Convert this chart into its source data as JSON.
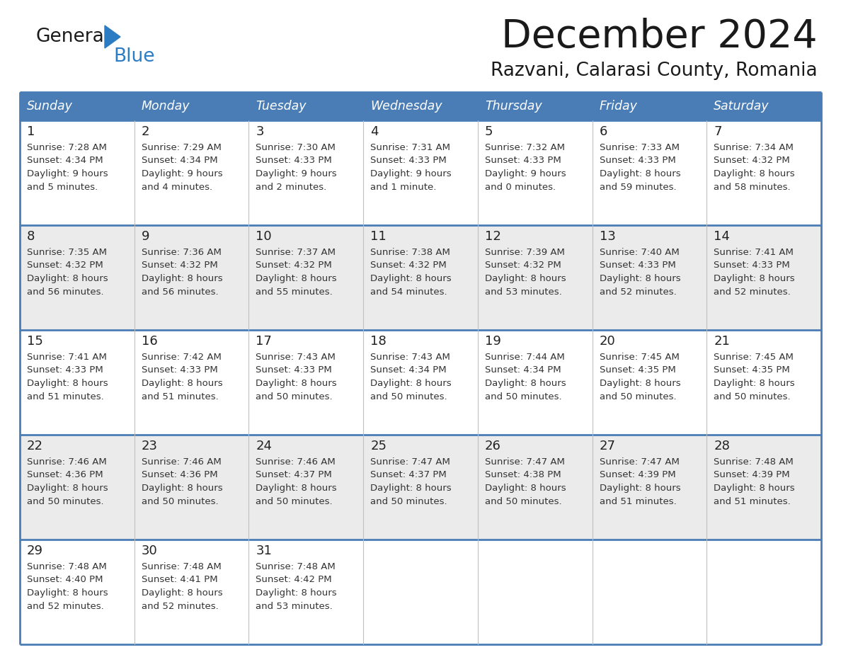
{
  "title": "December 2024",
  "subtitle": "Razvani, Calarasi County, Romania",
  "header_color": "#4a7db5",
  "header_text_color": "#ffffff",
  "cell_bg_white": "#ffffff",
  "cell_bg_gray": "#ebebeb",
  "border_color": "#3a6a9e",
  "separator_color": "#4a7db5",
  "day_names": [
    "Sunday",
    "Monday",
    "Tuesday",
    "Wednesday",
    "Thursday",
    "Friday",
    "Saturday"
  ],
  "weeks": [
    [
      {
        "day": "1",
        "sunrise": "7:28 AM",
        "sunset": "4:34 PM",
        "daylight": "9 hours",
        "daylight2": "and 5 minutes."
      },
      {
        "day": "2",
        "sunrise": "7:29 AM",
        "sunset": "4:34 PM",
        "daylight": "9 hours",
        "daylight2": "and 4 minutes."
      },
      {
        "day": "3",
        "sunrise": "7:30 AM",
        "sunset": "4:33 PM",
        "daylight": "9 hours",
        "daylight2": "and 2 minutes."
      },
      {
        "day": "4",
        "sunrise": "7:31 AM",
        "sunset": "4:33 PM",
        "daylight": "9 hours",
        "daylight2": "and 1 minute."
      },
      {
        "day": "5",
        "sunrise": "7:32 AM",
        "sunset": "4:33 PM",
        "daylight": "9 hours",
        "daylight2": "and 0 minutes."
      },
      {
        "day": "6",
        "sunrise": "7:33 AM",
        "sunset": "4:33 PM",
        "daylight": "8 hours",
        "daylight2": "and 59 minutes."
      },
      {
        "day": "7",
        "sunrise": "7:34 AM",
        "sunset": "4:32 PM",
        "daylight": "8 hours",
        "daylight2": "and 58 minutes."
      }
    ],
    [
      {
        "day": "8",
        "sunrise": "7:35 AM",
        "sunset": "4:32 PM",
        "daylight": "8 hours",
        "daylight2": "and 56 minutes."
      },
      {
        "day": "9",
        "sunrise": "7:36 AM",
        "sunset": "4:32 PM",
        "daylight": "8 hours",
        "daylight2": "and 56 minutes."
      },
      {
        "day": "10",
        "sunrise": "7:37 AM",
        "sunset": "4:32 PM",
        "daylight": "8 hours",
        "daylight2": "and 55 minutes."
      },
      {
        "day": "11",
        "sunrise": "7:38 AM",
        "sunset": "4:32 PM",
        "daylight": "8 hours",
        "daylight2": "and 54 minutes."
      },
      {
        "day": "12",
        "sunrise": "7:39 AM",
        "sunset": "4:32 PM",
        "daylight": "8 hours",
        "daylight2": "and 53 minutes."
      },
      {
        "day": "13",
        "sunrise": "7:40 AM",
        "sunset": "4:33 PM",
        "daylight": "8 hours",
        "daylight2": "and 52 minutes."
      },
      {
        "day": "14",
        "sunrise": "7:41 AM",
        "sunset": "4:33 PM",
        "daylight": "8 hours",
        "daylight2": "and 52 minutes."
      }
    ],
    [
      {
        "day": "15",
        "sunrise": "7:41 AM",
        "sunset": "4:33 PM",
        "daylight": "8 hours",
        "daylight2": "and 51 minutes."
      },
      {
        "day": "16",
        "sunrise": "7:42 AM",
        "sunset": "4:33 PM",
        "daylight": "8 hours",
        "daylight2": "and 51 minutes."
      },
      {
        "day": "17",
        "sunrise": "7:43 AM",
        "sunset": "4:33 PM",
        "daylight": "8 hours",
        "daylight2": "and 50 minutes."
      },
      {
        "day": "18",
        "sunrise": "7:43 AM",
        "sunset": "4:34 PM",
        "daylight": "8 hours",
        "daylight2": "and 50 minutes."
      },
      {
        "day": "19",
        "sunrise": "7:44 AM",
        "sunset": "4:34 PM",
        "daylight": "8 hours",
        "daylight2": "and 50 minutes."
      },
      {
        "day": "20",
        "sunrise": "7:45 AM",
        "sunset": "4:35 PM",
        "daylight": "8 hours",
        "daylight2": "and 50 minutes."
      },
      {
        "day": "21",
        "sunrise": "7:45 AM",
        "sunset": "4:35 PM",
        "daylight": "8 hours",
        "daylight2": "and 50 minutes."
      }
    ],
    [
      {
        "day": "22",
        "sunrise": "7:46 AM",
        "sunset": "4:36 PM",
        "daylight": "8 hours",
        "daylight2": "and 50 minutes."
      },
      {
        "day": "23",
        "sunrise": "7:46 AM",
        "sunset": "4:36 PM",
        "daylight": "8 hours",
        "daylight2": "and 50 minutes."
      },
      {
        "day": "24",
        "sunrise": "7:46 AM",
        "sunset": "4:37 PM",
        "daylight": "8 hours",
        "daylight2": "and 50 minutes."
      },
      {
        "day": "25",
        "sunrise": "7:47 AM",
        "sunset": "4:37 PM",
        "daylight": "8 hours",
        "daylight2": "and 50 minutes."
      },
      {
        "day": "26",
        "sunrise": "7:47 AM",
        "sunset": "4:38 PM",
        "daylight": "8 hours",
        "daylight2": "and 50 minutes."
      },
      {
        "day": "27",
        "sunrise": "7:47 AM",
        "sunset": "4:39 PM",
        "daylight": "8 hours",
        "daylight2": "and 51 minutes."
      },
      {
        "day": "28",
        "sunrise": "7:48 AM",
        "sunset": "4:39 PM",
        "daylight": "8 hours",
        "daylight2": "and 51 minutes."
      }
    ],
    [
      {
        "day": "29",
        "sunrise": "7:48 AM",
        "sunset": "4:40 PM",
        "daylight": "8 hours",
        "daylight2": "and 52 minutes."
      },
      {
        "day": "30",
        "sunrise": "7:48 AM",
        "sunset": "4:41 PM",
        "daylight": "8 hours",
        "daylight2": "and 52 minutes."
      },
      {
        "day": "31",
        "sunrise": "7:48 AM",
        "sunset": "4:42 PM",
        "daylight": "8 hours",
        "daylight2": "and 53 minutes."
      },
      null,
      null,
      null,
      null
    ]
  ]
}
